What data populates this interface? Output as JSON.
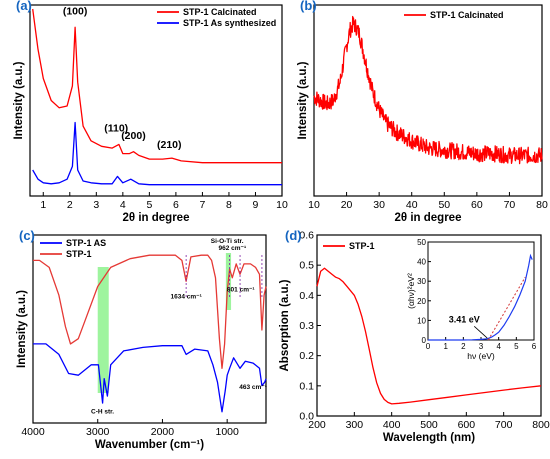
{
  "chart_data": [
    {
      "type": "line",
      "panel_label": "(a)",
      "xlabel": "2θ in degree",
      "ylabel": "Intensity (a.u.)",
      "xlim": [
        0.5,
        10
      ],
      "xticks": [
        1,
        2,
        3,
        4,
        5,
        6,
        7,
        8,
        9,
        10
      ],
      "series": [
        {
          "name": "STP-1 Calcinated",
          "color": "#ff0000",
          "x": [
            0.6,
            0.8,
            1.0,
            1.3,
            1.6,
            1.9,
            2.1,
            2.2,
            2.3,
            2.5,
            2.8,
            3.2,
            3.6,
            3.85,
            4.0,
            4.25,
            4.4,
            4.6,
            5.0,
            5.5,
            5.85,
            6.2,
            7,
            8,
            9,
            10
          ],
          "y": [
            1.0,
            0.78,
            0.62,
            0.5,
            0.46,
            0.47,
            0.58,
            0.9,
            0.6,
            0.36,
            0.28,
            0.25,
            0.24,
            0.26,
            0.21,
            0.21,
            0.22,
            0.2,
            0.18,
            0.18,
            0.185,
            0.17,
            0.16,
            0.16,
            0.16,
            0.16
          ]
        },
        {
          "name": "STP-1 As synthesized",
          "color": "#0000ff",
          "x": [
            0.6,
            0.8,
            1.0,
            1.3,
            1.6,
            1.9,
            2.1,
            2.2,
            2.3,
            2.5,
            2.8,
            3.2,
            3.6,
            3.8,
            4.0,
            4.3,
            4.6,
            5.0,
            6,
            7,
            8,
            9,
            10
          ],
          "y": [
            0.12,
            0.07,
            0.05,
            0.045,
            0.05,
            0.07,
            0.14,
            0.38,
            0.12,
            0.06,
            0.05,
            0.045,
            0.045,
            0.085,
            0.05,
            0.07,
            0.045,
            0.04,
            0.04,
            0.04,
            0.04,
            0.04,
            0.04
          ]
        }
      ],
      "annotations": [
        {
          "text": "(100)",
          "x": 2.2,
          "y": 0.97
        },
        {
          "text": "(110)",
          "x": 3.75,
          "y": 0.33
        },
        {
          "text": "(200)",
          "x": 4.4,
          "y": 0.29
        },
        {
          "text": "(210)",
          "x": 5.75,
          "y": 0.24
        }
      ]
    },
    {
      "type": "line",
      "panel_label": "(b)",
      "xlabel": "2θ in degree",
      "ylabel": "Intensity (a.u.)",
      "xlim": [
        10,
        80
      ],
      "xticks": [
        10,
        20,
        30,
        40,
        50,
        60,
        70,
        80
      ],
      "series": [
        {
          "name": "STP-1 Calcinated",
          "color": "#ff0000",
          "x": [
            10,
            12,
            14,
            16,
            18,
            20,
            21,
            22,
            23,
            24,
            25,
            26,
            28,
            30,
            32,
            35,
            38,
            40,
            45,
            50,
            55,
            60,
            65,
            70,
            75,
            80
          ],
          "y": [
            0.52,
            0.5,
            0.48,
            0.5,
            0.6,
            0.8,
            0.88,
            0.92,
            0.9,
            0.86,
            0.78,
            0.7,
            0.55,
            0.45,
            0.38,
            0.33,
            0.3,
            0.28,
            0.24,
            0.23,
            0.22,
            0.21,
            0.21,
            0.2,
            0.2,
            0.2
          ]
        }
      ]
    },
    {
      "type": "line",
      "panel_label": "(c)",
      "xlabel": "Wavenumber (cm⁻¹)",
      "ylabel": "Intensity (a.u.)",
      "xlim": [
        4000,
        400
      ],
      "xticks": [
        4000,
        3000,
        2000,
        1000
      ],
      "series": [
        {
          "name": "STP-1 AS",
          "color": "#0000ff",
          "x": [
            4000,
            3800,
            3600,
            3450,
            3300,
            3100,
            2990,
            2925,
            2900,
            2850,
            2800,
            2600,
            2300,
            2000,
            1700,
            1634,
            1500,
            1300,
            1220,
            1150,
            1080,
            1030,
            1000,
            962,
            900,
            801,
            720,
            600,
            500,
            463,
            420,
            400
          ],
          "y": [
            0.42,
            0.42,
            0.36,
            0.25,
            0.24,
            0.3,
            0.3,
            0.08,
            0.22,
            0.12,
            0.3,
            0.38,
            0.4,
            0.41,
            0.41,
            0.36,
            0.39,
            0.38,
            0.3,
            0.2,
            0.03,
            0.15,
            0.24,
            0.28,
            0.34,
            0.28,
            0.32,
            0.31,
            0.28,
            0.18,
            0.2,
            0.22
          ]
        },
        {
          "name": "STP-1",
          "color": "#e53935",
          "x": [
            4000,
            3900,
            3750,
            3600,
            3500,
            3420,
            3300,
            3200,
            3000,
            2800,
            2500,
            2200,
            2000,
            1800,
            1700,
            1634,
            1560,
            1400,
            1300,
            1240,
            1180,
            1120,
            1080,
            1040,
            1000,
            962,
            920,
            860,
            801,
            740,
            640,
            560,
            500,
            463,
            430,
            400
          ],
          "y": [
            0.9,
            0.9,
            0.86,
            0.7,
            0.52,
            0.42,
            0.45,
            0.55,
            0.75,
            0.86,
            0.91,
            0.93,
            0.93,
            0.93,
            0.9,
            0.78,
            0.92,
            0.93,
            0.93,
            0.9,
            0.8,
            0.45,
            0.28,
            0.42,
            0.72,
            0.85,
            0.8,
            0.88,
            0.82,
            0.88,
            0.88,
            0.86,
            0.82,
            0.5,
            0.7,
            0.75
          ]
        }
      ],
      "annotations": [
        {
          "text": "1634 cm⁻¹",
          "x": 1634,
          "y": 0.68
        },
        {
          "text": "Si-O-Ti str.",
          "x": 1000,
          "y": 1.0
        },
        {
          "text": "962 cm⁻¹",
          "x": 920,
          "y": 0.96
        },
        {
          "text": "801 cm⁻¹",
          "x": 790,
          "y": 0.72
        },
        {
          "text": "463 cm⁻¹",
          "x": 600,
          "y": 0.16
        },
        {
          "text": "C-H str.",
          "x": 2925,
          "y": 0.02
        }
      ],
      "highlight_bands": [
        [
          3000,
          2830
        ],
        [
          1020,
          940
        ]
      ]
    },
    {
      "type": "line",
      "panel_label": "(d)",
      "xlabel": "Wavelength (nm)",
      "ylabel": "Absorption (a.u.)",
      "xlim": [
        200,
        800
      ],
      "ylim": [
        0.0,
        0.6
      ],
      "xticks": [
        200,
        300,
        400,
        500,
        600,
        700,
        800
      ],
      "yticks": [
        0.0,
        0.1,
        0.2,
        0.3,
        0.4,
        0.5,
        0.6
      ],
      "series": [
        {
          "name": "STP-1",
          "color": "#ff0000",
          "x": [
            200,
            210,
            220,
            230,
            240,
            250,
            260,
            270,
            280,
            290,
            300,
            310,
            320,
            330,
            340,
            350,
            360,
            370,
            380,
            390,
            400,
            420,
            450,
            500,
            550,
            600,
            650,
            700,
            750,
            800
          ],
          "y": [
            0.43,
            0.48,
            0.49,
            0.48,
            0.47,
            0.46,
            0.455,
            0.445,
            0.43,
            0.415,
            0.4,
            0.37,
            0.33,
            0.28,
            0.22,
            0.16,
            0.11,
            0.075,
            0.055,
            0.045,
            0.04,
            0.042,
            0.046,
            0.054,
            0.062,
            0.07,
            0.078,
            0.086,
            0.093,
            0.1
          ]
        }
      ],
      "inset": {
        "xlabel": "hν (eV)",
        "ylabel": "(αhν)²eV²",
        "xlim": [
          0,
          6
        ],
        "ylim": [
          0,
          50
        ],
        "xticks": [
          0,
          1,
          2,
          3,
          4,
          5,
          6
        ],
        "yticks": [
          0,
          10,
          20,
          30,
          40,
          50
        ],
        "x": [
          0,
          0.5,
          1,
          1.5,
          2,
          2.5,
          3,
          3.3,
          3.41,
          3.6,
          3.8,
          4.0,
          4.3,
          4.6,
          4.9,
          5.2,
          5.5,
          5.7,
          5.8,
          5.9
        ],
        "y": [
          0,
          0,
          0,
          0,
          0,
          0.1,
          0.3,
          0.6,
          0.8,
          1.5,
          2.6,
          4,
          7.5,
          12,
          17,
          23,
          30,
          38,
          43,
          41
        ],
        "fit_line": {
          "x": [
            3.41,
            5.5
          ],
          "y": [
            0,
            32
          ]
        },
        "annotation": {
          "text": "3.41 eV",
          "x": 3.41,
          "y": 0
        }
      }
    }
  ]
}
